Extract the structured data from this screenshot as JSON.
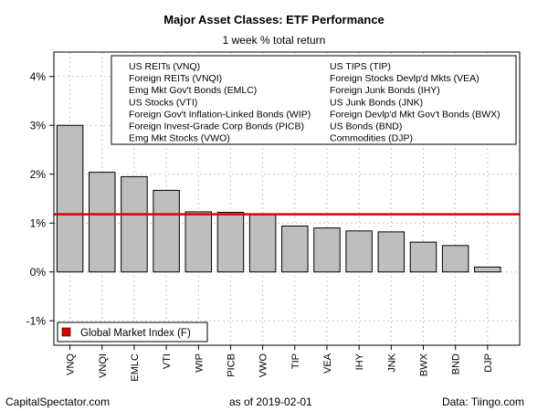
{
  "chart_data": {
    "type": "bar",
    "title": "Major Asset Classes: ETF Performance",
    "subtitle": "1 week % total return",
    "categories": [
      "VNQ",
      "VNQI",
      "EMLC",
      "VTI",
      "WIP",
      "PICB",
      "VWO",
      "TIP",
      "VEA",
      "IHY",
      "JNK",
      "BWX",
      "BND",
      "DJP"
    ],
    "values": [
      3.0,
      2.04,
      1.95,
      1.67,
      1.23,
      1.22,
      1.17,
      0.94,
      0.9,
      0.84,
      0.82,
      0.61,
      0.54,
      0.1
    ],
    "reference_line": {
      "value": 1.18,
      "color": "#e00000",
      "label": "Global Market Index (F)"
    },
    "ylim": [
      -1.5,
      4.5
    ],
    "yticks": [
      -1,
      0,
      1,
      2,
      3,
      4
    ],
    "ytick_labels": [
      "-1%",
      "0%",
      "1%",
      "2%",
      "3%",
      "4%"
    ],
    "grid": true,
    "bar_color": "#bebebe",
    "legend_top": {
      "left_column": [
        "US REITs (VNQ)",
        "Foreign REITs (VNQI)",
        "Emg Mkt Gov't Bonds (EMLC)",
        "US Stocks (VTI)",
        "Foreign Gov't Inflation-Linked Bonds (WIP)",
        "Foreign Invest-Grade Corp Bonds (PICB)",
        "Emg Mkt Stocks (VWO)"
      ],
      "right_column": [
        "US TIPS (TIP)",
        "Foreign Stocks Devlp'd Mkts (VEA)",
        "Foreign Junk Bonds (IHY)",
        "US Junk Bonds (JNK)",
        "Foreign Devlp'd Mkt Gov't Bonds (BWX)",
        "US Bonds (BND)",
        "Commodities (DJP)"
      ]
    },
    "legend_bottom_position": "bottom-left"
  },
  "footer": {
    "left": "CapitalSpectator.com",
    "center": "as of   2019-02-01",
    "right": "Data: Tiingo.com"
  }
}
